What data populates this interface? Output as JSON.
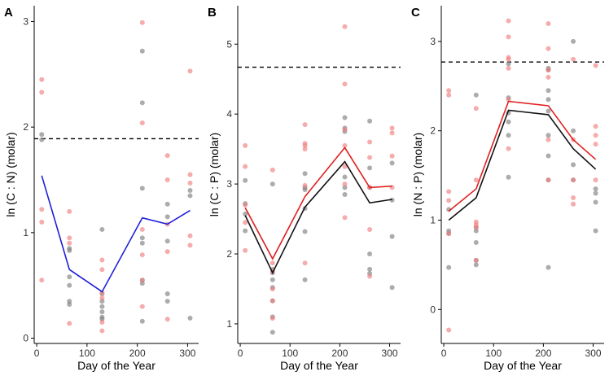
{
  "colors": {
    "grey_point": "#7f7f7f",
    "pink_point": "#f08080",
    "blue_line": "#1f1fd6",
    "red_line": "#e02020",
    "black_line": "#111111",
    "axis": "#000000"
  },
  "chart_data": [
    {
      "type": "scatter",
      "panel_letter": "A",
      "xlabel": "Day of the Year",
      "ylabel": "ln (C : N) (molar)",
      "xlim": [
        -5,
        322
      ],
      "ylim": [
        -0.05,
        3.15
      ],
      "xticks": [
        0,
        100,
        200,
        300
      ],
      "yticks": [
        0,
        1,
        2,
        3
      ],
      "reference_line": 1.89,
      "series_points": [
        {
          "name": "grey",
          "color": "grey_point",
          "points": [
            [
              10,
              1.93
            ],
            [
              10,
              1.88
            ],
            [
              65,
              0.85
            ],
            [
              65,
              0.83
            ],
            [
              65,
              0.58
            ],
            [
              65,
              0.5
            ],
            [
              65,
              0.35
            ],
            [
              65,
              0.32
            ],
            [
              130,
              1.03
            ],
            [
              130,
              0.42
            ],
            [
              130,
              0.35
            ],
            [
              130,
              0.3
            ],
            [
              130,
              0.25
            ],
            [
              130,
              0.2
            ],
            [
              130,
              0.18
            ],
            [
              210,
              2.72
            ],
            [
              210,
              2.23
            ],
            [
              210,
              1.42
            ],
            [
              210,
              0.95
            ],
            [
              210,
              0.9
            ],
            [
              210,
              0.55
            ],
            [
              210,
              0.52
            ],
            [
              210,
              0.16
            ],
            [
              260,
              1.27
            ],
            [
              260,
              1.15
            ],
            [
              260,
              0.92
            ],
            [
              260,
              0.42
            ],
            [
              260,
              0.35
            ],
            [
              305,
              1.4
            ],
            [
              305,
              1.35
            ],
            [
              305,
              0.19
            ]
          ]
        },
        {
          "name": "pink",
          "color": "pink_point",
          "points": [
            [
              10,
              2.45
            ],
            [
              10,
              2.33
            ],
            [
              10,
              1.22
            ],
            [
              10,
              1.1
            ],
            [
              10,
              0.55
            ],
            [
              65,
              1.2
            ],
            [
              65,
              0.95
            ],
            [
              65,
              0.9
            ],
            [
              65,
              0.14
            ],
            [
              130,
              0.74
            ],
            [
              130,
              0.65
            ],
            [
              130,
              0.43
            ],
            [
              130,
              0.38
            ],
            [
              130,
              0.15
            ],
            [
              130,
              0.07
            ],
            [
              210,
              2.99
            ],
            [
              210,
              2.04
            ],
            [
              210,
              1.03
            ],
            [
              210,
              0.79
            ],
            [
              210,
              0.55
            ],
            [
              210,
              0.3
            ],
            [
              260,
              1.73
            ],
            [
              260,
              1.5
            ],
            [
              260,
              1.08
            ],
            [
              260,
              0.82
            ],
            [
              260,
              0.18
            ],
            [
              305,
              2.53
            ],
            [
              305,
              1.55
            ],
            [
              305,
              1.47
            ],
            [
              305,
              0.97
            ],
            [
              305,
              0.88
            ]
          ]
        }
      ],
      "lines": [
        {
          "name": "mean",
          "color": "blue_line",
          "x": [
            10,
            65,
            130,
            210,
            260,
            305
          ],
          "y": [
            1.54,
            0.65,
            0.44,
            1.14,
            1.08,
            1.21
          ]
        }
      ]
    },
    {
      "type": "scatter",
      "panel_letter": "B",
      "xlabel": "Day of the Year",
      "ylabel": "ln (C : P) (molar)",
      "xlim": [
        -5,
        322
      ],
      "ylim": [
        0.72,
        5.55
      ],
      "xticks": [
        0,
        100,
        200,
        300
      ],
      "yticks": [
        1,
        2,
        3,
        4,
        5
      ],
      "reference_line": 4.67,
      "series_points": [
        {
          "name": "grey",
          "color": "grey_point",
          "points": [
            [
              10,
              3.05
            ],
            [
              10,
              2.72
            ],
            [
              10,
              2.57
            ],
            [
              10,
              2.33
            ],
            [
              65,
              3.0
            ],
            [
              65,
              1.78
            ],
            [
              65,
              1.73
            ],
            [
              65,
              1.63
            ],
            [
              65,
              1.52
            ],
            [
              65,
              1.33
            ],
            [
              65,
              1.1
            ],
            [
              65,
              0.88
            ],
            [
              130,
              3.15
            ],
            [
              130,
              2.95
            ],
            [
              130,
              2.92
            ],
            [
              130,
              2.65
            ],
            [
              130,
              2.32
            ],
            [
              130,
              1.63
            ],
            [
              210,
              3.95
            ],
            [
              210,
              3.8
            ],
            [
              210,
              3.75
            ],
            [
              210,
              3.1
            ],
            [
              210,
              2.95
            ],
            [
              210,
              2.85
            ],
            [
              260,
              3.9
            ],
            [
              260,
              3.23
            ],
            [
              260,
              2.95
            ],
            [
              260,
              2.0
            ],
            [
              260,
              1.78
            ],
            [
              260,
              1.72
            ],
            [
              305,
              3.3
            ],
            [
              305,
              2.77
            ],
            [
              305,
              2.25
            ],
            [
              305,
              1.52
            ]
          ]
        },
        {
          "name": "pink",
          "color": "pink_point",
          "points": [
            [
              10,
              3.55
            ],
            [
              10,
              3.25
            ],
            [
              10,
              2.7
            ],
            [
              10,
              2.45
            ],
            [
              10,
              2.05
            ],
            [
              65,
              3.2
            ],
            [
              65,
              1.87
            ],
            [
              65,
              1.75
            ],
            [
              65,
              1.5
            ],
            [
              65,
              1.33
            ],
            [
              65,
              1.08
            ],
            [
              130,
              3.85
            ],
            [
              130,
              3.58
            ],
            [
              130,
              3.55
            ],
            [
              130,
              3.5
            ],
            [
              130,
              2.98
            ],
            [
              130,
              1.87
            ],
            [
              210,
              5.25
            ],
            [
              210,
              4.43
            ],
            [
              210,
              3.78
            ],
            [
              210,
              3.55
            ],
            [
              210,
              3.25
            ],
            [
              210,
              3.0
            ],
            [
              210,
              2.52
            ],
            [
              260,
              3.6
            ],
            [
              260,
              3.38
            ],
            [
              260,
              2.95
            ],
            [
              260,
              2.35
            ],
            [
              260,
              1.68
            ],
            [
              305,
              3.8
            ],
            [
              305,
              3.73
            ],
            [
              305,
              3.4
            ],
            [
              305,
              2.95
            ]
          ]
        }
      ],
      "lines": [
        {
          "name": "fit-red",
          "color": "red_line",
          "x": [
            10,
            65,
            130,
            210,
            260,
            305
          ],
          "y": [
            2.66,
            1.93,
            2.82,
            3.52,
            2.95,
            2.97
          ]
        },
        {
          "name": "fit-black",
          "color": "black_line",
          "x": [
            10,
            65,
            130,
            210,
            260,
            305
          ],
          "y": [
            2.55,
            1.73,
            2.67,
            3.32,
            2.73,
            2.78
          ]
        }
      ]
    },
    {
      "type": "scatter",
      "panel_letter": "C",
      "xlabel": "Day of the Year",
      "ylabel": "ln (N : P) (molar)",
      "xlim": [
        -5,
        322
      ],
      "ylim": [
        -0.38,
        3.4
      ],
      "xticks": [
        0,
        100,
        200,
        300
      ],
      "yticks": [
        0,
        1,
        2,
        3
      ],
      "reference_line": 2.77,
      "series_points": [
        {
          "name": "grey",
          "color": "grey_point",
          "points": [
            [
              10,
              1.12
            ],
            [
              10,
              0.88
            ],
            [
              10,
              0.85
            ],
            [
              10,
              0.47
            ],
            [
              65,
              2.4
            ],
            [
              65,
              0.92
            ],
            [
              65,
              0.88
            ],
            [
              65,
              0.75
            ],
            [
              65,
              0.55
            ],
            [
              65,
              0.5
            ],
            [
              130,
              2.75
            ],
            [
              130,
              2.37
            ],
            [
              130,
              2.2
            ],
            [
              130,
              2.1
            ],
            [
              130,
              1.95
            ],
            [
              130,
              1.48
            ],
            [
              210,
              2.7
            ],
            [
              210,
              2.68
            ],
            [
              210,
              2.45
            ],
            [
              210,
              2.35
            ],
            [
              210,
              2.22
            ],
            [
              210,
              1.95
            ],
            [
              210,
              1.72
            ],
            [
              210,
              1.45
            ],
            [
              210,
              0.47
            ],
            [
              260,
              3.0
            ],
            [
              260,
              2.0
            ],
            [
              260,
              1.62
            ],
            [
              260,
              1.45
            ],
            [
              305,
              1.35
            ],
            [
              305,
              1.3
            ],
            [
              305,
              1.2
            ],
            [
              305,
              0.88
            ]
          ]
        },
        {
          "name": "pink",
          "color": "pink_point",
          "points": [
            [
              10,
              2.45
            ],
            [
              10,
              2.4
            ],
            [
              10,
              1.32
            ],
            [
              10,
              1.22
            ],
            [
              10,
              0.85
            ],
            [
              10,
              -0.23
            ],
            [
              65,
              2.25
            ],
            [
              65,
              1.45
            ],
            [
              65,
              0.98
            ],
            [
              65,
              0.95
            ],
            [
              65,
              0.92
            ],
            [
              65,
              0.55
            ],
            [
              130,
              3.23
            ],
            [
              130,
              3.05
            ],
            [
              130,
              2.82
            ],
            [
              130,
              2.8
            ],
            [
              130,
              2.7
            ],
            [
              130,
              2.35
            ],
            [
              130,
              1.8
            ],
            [
              210,
              3.2
            ],
            [
              210,
              2.92
            ],
            [
              210,
              2.68
            ],
            [
              210,
              2.6
            ],
            [
              210,
              1.9
            ],
            [
              210,
              1.45
            ],
            [
              260,
              2.8
            ],
            [
              260,
              1.9
            ],
            [
              260,
              1.45
            ],
            [
              260,
              1.25
            ],
            [
              260,
              1.18
            ],
            [
              305,
              2.73
            ],
            [
              305,
              2.05
            ],
            [
              305,
              1.95
            ],
            [
              305,
              1.85
            ],
            [
              305,
              1.45
            ]
          ]
        }
      ],
      "lines": [
        {
          "name": "fit-red",
          "color": "red_line",
          "x": [
            10,
            65,
            130,
            210,
            260,
            305
          ],
          "y": [
            1.1,
            1.35,
            2.33,
            2.28,
            1.9,
            1.68
          ]
        },
        {
          "name": "fit-black",
          "color": "black_line",
          "x": [
            10,
            65,
            130,
            210,
            260,
            305
          ],
          "y": [
            1.0,
            1.25,
            2.23,
            2.18,
            1.8,
            1.57
          ]
        }
      ]
    }
  ]
}
